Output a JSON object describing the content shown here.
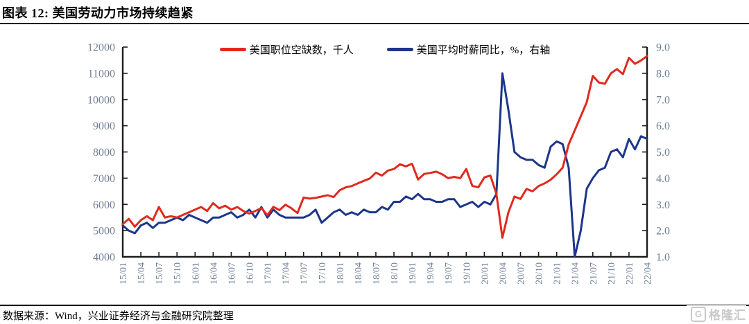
{
  "header": {
    "title": "图表 12: 美国劳动力市场持续趋紧"
  },
  "footer": {
    "source": "数据来源：Wind，兴业证券经济与金融研究院整理"
  },
  "watermark": {
    "icon_letter": "G",
    "text": "格隆汇"
  },
  "colors": {
    "axis": "#1c1c1c",
    "tick_label": "#6e7e93",
    "job_openings_red": "#e02a1e",
    "wage_growth_blue": "#1d3689",
    "watermark_gray": "#c9c9c9"
  },
  "chart_data": {
    "type": "line",
    "title": "",
    "x_start": "15/01",
    "x_end": "22/04",
    "x_frequency": "monthly",
    "grid": false,
    "legend_position": "top-center",
    "x_tick_labels": [
      "15/01",
      "15/04",
      "15/07",
      "15/10",
      "16/01",
      "16/04",
      "16/07",
      "16/10",
      "17/01",
      "17/04",
      "17/07",
      "17/10",
      "18/01",
      "18/04",
      "18/07",
      "18/10",
      "19/01",
      "19/04",
      "19/07",
      "19/10",
      "20/01",
      "20/04",
      "20/07",
      "20/10",
      "21/01",
      "21/04",
      "21/07",
      "21/10",
      "22/01",
      "22/04"
    ],
    "left_axis": {
      "min": 4000,
      "max": 12000,
      "step": 1000,
      "tick_labels": [
        "4000",
        "5000",
        "6000",
        "7000",
        "8000",
        "9000",
        "10000",
        "11000",
        "12000"
      ]
    },
    "right_axis": {
      "min": 1.0,
      "max": 9.0,
      "step": 1.0,
      "tick_labels": [
        "1.0",
        "2.0",
        "3.0",
        "4.0",
        "5.0",
        "6.0",
        "7.0",
        "8.0",
        "9.0"
      ]
    },
    "series": [
      {
        "id": "job-openings",
        "name": "美国职位空缺数，千人",
        "axis": "left",
        "color": "#e02a1e",
        "values": [
          5250,
          5450,
          5150,
          5400,
          5550,
          5400,
          5900,
          5500,
          5550,
          5500,
          5600,
          5700,
          5800,
          5900,
          5750,
          6050,
          5850,
          5950,
          5800,
          5900,
          5750,
          5650,
          5750,
          5860,
          5590,
          5910,
          5780,
          5990,
          5850,
          5670,
          6260,
          6220,
          6250,
          6300,
          6350,
          6280,
          6540,
          6650,
          6700,
          6800,
          6900,
          6990,
          7210,
          7100,
          7290,
          7350,
          7530,
          7450,
          7550,
          6950,
          7160,
          7200,
          7250,
          7150,
          7000,
          7050,
          7000,
          7350,
          6710,
          6650,
          7030,
          7100,
          6400,
          4730,
          5700,
          6300,
          6210,
          6590,
          6500,
          6700,
          6800,
          6940,
          7150,
          7400,
          8290,
          8820,
          9360,
          9900,
          10900,
          10650,
          10600,
          11000,
          11160,
          10970,
          11590,
          11360,
          11490,
          11660
        ]
      },
      {
        "id": "wage-growth",
        "name": "美国平均时薪同比，%，右轴",
        "axis": "right",
        "color": "#1d3689",
        "values": [
          2.2,
          2.0,
          1.9,
          2.2,
          2.3,
          2.1,
          2.3,
          2.3,
          2.4,
          2.5,
          2.4,
          2.6,
          2.5,
          2.4,
          2.3,
          2.5,
          2.5,
          2.6,
          2.7,
          2.5,
          2.6,
          2.8,
          2.5,
          2.9,
          2.5,
          2.8,
          2.6,
          2.5,
          2.5,
          2.5,
          2.5,
          2.6,
          2.8,
          2.3,
          2.5,
          2.7,
          2.8,
          2.6,
          2.7,
          2.6,
          2.8,
          2.7,
          2.7,
          2.9,
          2.8,
          3.1,
          3.1,
          3.3,
          3.2,
          3.4,
          3.2,
          3.2,
          3.1,
          3.1,
          3.2,
          3.2,
          2.9,
          3.0,
          3.1,
          2.9,
          3.1,
          3.0,
          3.4,
          8.0,
          6.6,
          5.0,
          4.8,
          4.7,
          4.7,
          4.5,
          4.4,
          5.2,
          5.4,
          5.3,
          4.4,
          1.0,
          2.0,
          3.6,
          4.0,
          4.3,
          4.4,
          5.0,
          5.1,
          4.8,
          5.5,
          5.1,
          5.6,
          5.5
        ]
      }
    ]
  }
}
